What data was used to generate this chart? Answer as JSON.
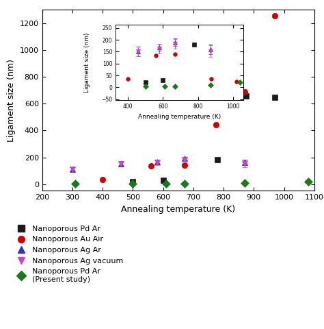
{
  "xlabel": "Annealing temperature (K)",
  "ylabel": "Ligament size (nm)",
  "xlim": [
    200,
    1100
  ],
  "ylim": [
    -50,
    1300
  ],
  "xticks": [
    200,
    300,
    400,
    500,
    600,
    700,
    800,
    900,
    1000,
    1100
  ],
  "yticks": [
    0,
    200,
    400,
    600,
    800,
    1000,
    1200
  ],
  "series": {
    "Nanoporous Pd Ar": {
      "color": "#1a1a1a",
      "marker": "s",
      "x": [
        500,
        600,
        780,
        875,
        970
      ],
      "y": [
        20,
        30,
        180,
        660,
        645
      ],
      "yerr": [
        0,
        0,
        0,
        0,
        0
      ]
    },
    "Nanoporous Au Air": {
      "color": "#cc0000",
      "marker": "o",
      "x": [
        400,
        560,
        670,
        775,
        870,
        970
      ],
      "y": [
        35,
        135,
        140,
        445,
        690,
        1255
      ],
      "yerr": [
        0,
        0,
        0,
        0,
        0,
        0
      ]
    },
    "Nanoporous Ag Ar": {
      "color": "#3333bb",
      "marker": "^",
      "x": [
        300,
        460,
        580,
        670,
        870
      ],
      "y": [
        113,
        152,
        168,
        190,
        160
      ],
      "yerr": [
        15,
        20,
        15,
        15,
        20
      ]
    },
    "Nanoporous Ag vacuum": {
      "color": "#cc44cc",
      "marker": "v",
      "x": [
        300,
        460,
        580,
        670,
        870
      ],
      "y": [
        110,
        152,
        162,
        183,
        152
      ],
      "yerr": [
        20,
        20,
        20,
        20,
        25
      ]
    },
    "Nanoporous Pd Ar (Present study)": {
      "color": "#1a7a1a",
      "marker": "D",
      "x": [
        310,
        500,
        610,
        670,
        870,
        1080
      ],
      "y": [
        5,
        5,
        5,
        5,
        10,
        20
      ],
      "yerr": [
        0,
        0,
        0,
        0,
        0,
        0
      ]
    }
  },
  "inset": {
    "bounds": [
      0.27,
      0.5,
      0.47,
      0.42
    ],
    "xlim": [
      330,
      1060
    ],
    "ylim": [
      -55,
      265
    ],
    "xticks": [
      400,
      600,
      800,
      1000
    ],
    "yticks": [
      -50,
      0,
      50,
      100,
      150,
      200,
      250
    ],
    "xlabel": "Annealing temperature (K)",
    "ylabel": "Ligament size (nm)",
    "series": {
      "Nanoporous Pd Ar": {
        "color": "#1a1a1a",
        "marker": "s",
        "x": [
          500,
          600,
          780
        ],
        "y": [
          20,
          30,
          180
        ],
        "yerr": [
          0,
          0,
          0
        ]
      },
      "Nanoporous Au Air": {
        "color": "#cc0000",
        "marker": "o",
        "x": [
          400,
          560,
          670,
          875,
          1020
        ],
        "y": [
          35,
          135,
          140,
          35,
          25
        ],
        "yerr": [
          0,
          0,
          0,
          0,
          0
        ]
      },
      "Nanoporous Ag Ar": {
        "color": "#3333bb",
        "marker": "^",
        "x": [
          300,
          460,
          580,
          670,
          870
        ],
        "y": [
          113,
          152,
          168,
          190,
          160
        ],
        "yerr": [
          15,
          20,
          15,
          15,
          20
        ]
      },
      "Nanoporous Ag vacuum": {
        "color": "#cc44cc",
        "marker": "v",
        "x": [
          300,
          460,
          580,
          670,
          870
        ],
        "y": [
          110,
          152,
          162,
          183,
          152
        ],
        "yerr": [
          20,
          20,
          20,
          20,
          25
        ]
      },
      "Nanoporous Pd Ar (Present study)": {
        "color": "#1a7a1a",
        "marker": "D",
        "x": [
          310,
          500,
          610,
          670,
          870,
          1040
        ],
        "y": [
          5,
          5,
          5,
          5,
          10,
          20
        ],
        "yerr": [
          0,
          0,
          0,
          0,
          0,
          0
        ]
      }
    }
  },
  "legend_labels": [
    "Nanoporous Pd Ar",
    "Nanoporous Au Air",
    "Nanoporous Ag Ar",
    "Nanoporous Ag vacuum",
    "Nanoporous Pd Ar\n(Present study)"
  ],
  "legend_colors": [
    "#1a1a1a",
    "#cc0000",
    "#3333bb",
    "#cc44cc",
    "#1a7a1a"
  ],
  "legend_markers": [
    "s",
    "o",
    "^",
    "v",
    "D"
  ],
  "bg_color": "#ffffff"
}
